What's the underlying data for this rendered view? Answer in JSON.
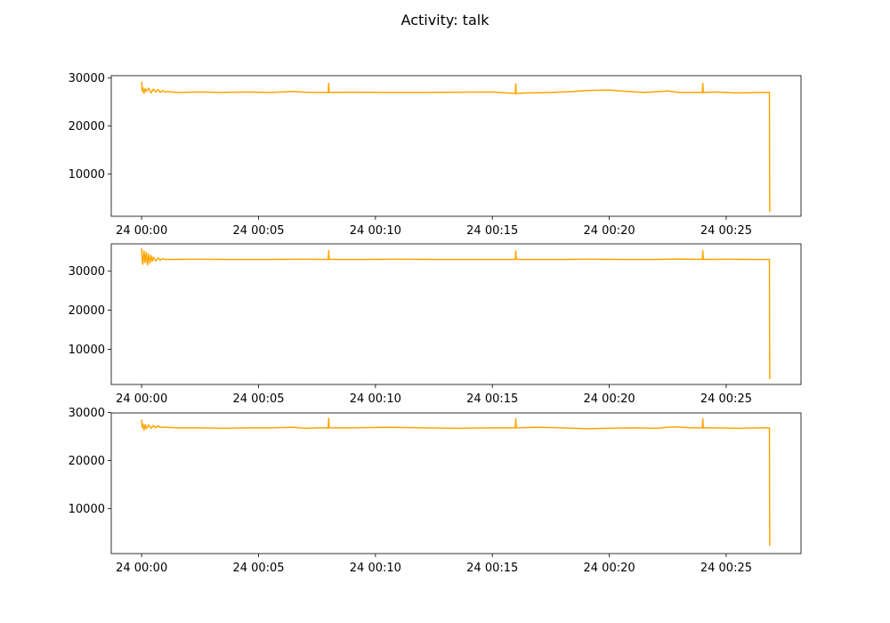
{
  "figure": {
    "title": "Activity: talk"
  },
  "colors": {
    "series": "#ffa500"
  },
  "chart_data": [
    {
      "type": "line",
      "title": "",
      "xlabel": "",
      "ylabel": "",
      "x_unit": "minutes",
      "xlim": [
        -1.3,
        28.2
      ],
      "ylim": [
        1200,
        30500
      ],
      "x_ticks": [
        0,
        5,
        10,
        15,
        20,
        25
      ],
      "x_tick_labels": [
        "24 00:00",
        "24 00:05",
        "24 00:10",
        "24 00:15",
        "24 00:20",
        "24 00:25"
      ],
      "y_ticks": [
        10000,
        20000,
        30000
      ],
      "y_tick_labels": [
        "10000",
        "20000",
        "30000"
      ],
      "grid": false,
      "series": [
        {
          "color": "#ffa500",
          "x": [
            0,
            0.02,
            0.05,
            0.1,
            0.15,
            0.2,
            0.3,
            0.4,
            0.5,
            0.6,
            0.7,
            0.8,
            0.9,
            1.0,
            1.1,
            1.5,
            2.5,
            3.5,
            4.5,
            5.5,
            6.5,
            7.0,
            7.5,
            7.98,
            8.0,
            8.02,
            9.0,
            10.5,
            12.0,
            13.5,
            15.0,
            15.98,
            16.0,
            16.02,
            16.5,
            17.5,
            18.5,
            19.0,
            20.0,
            20.5,
            21.5,
            22.5,
            23.0,
            23.98,
            24.0,
            24.02,
            24.5,
            25.5,
            26.5,
            26.85,
            26.86
          ],
          "y": [
            29200,
            27300,
            28000,
            26800,
            27800,
            27200,
            27900,
            26900,
            27700,
            27100,
            27600,
            27000,
            27400,
            27100,
            27200,
            27000,
            27100,
            27000,
            27100,
            27000,
            27200,
            27050,
            27000,
            27000,
            28900,
            27000,
            27050,
            27000,
            27000,
            27050,
            27100,
            26800,
            28800,
            26800,
            26900,
            27000,
            27200,
            27400,
            27500,
            27300,
            27000,
            27300,
            27000,
            27000,
            28900,
            27000,
            27100,
            26900,
            27000,
            27000,
            2100
          ]
        }
      ]
    },
    {
      "type": "line",
      "title": "",
      "xlabel": "",
      "ylabel": "",
      "x_unit": "minutes",
      "xlim": [
        -1.3,
        28.2
      ],
      "ylim": [
        1000,
        37000
      ],
      "x_ticks": [
        0,
        5,
        10,
        15,
        20,
        25
      ],
      "x_tick_labels": [
        "24 00:00",
        "24 00:05",
        "24 00:10",
        "24 00:15",
        "24 00:20",
        "24 00:25"
      ],
      "y_ticks": [
        10000,
        20000,
        30000
      ],
      "y_tick_labels": [
        "10000",
        "20000",
        "30000"
      ],
      "grid": false,
      "series": [
        {
          "color": "#ffa500",
          "x": [
            0,
            0.02,
            0.05,
            0.1,
            0.15,
            0.2,
            0.25,
            0.3,
            0.35,
            0.4,
            0.45,
            0.5,
            0.6,
            0.7,
            0.8,
            0.9,
            1.0,
            1.2,
            2.5,
            4.0,
            5.5,
            7.0,
            7.98,
            8.0,
            8.02,
            9.5,
            11.0,
            12.5,
            14.0,
            15.5,
            15.98,
            16.0,
            16.02,
            17.5,
            19.0,
            20.5,
            22.0,
            23.0,
            23.98,
            24.0,
            24.02,
            25.0,
            26.0,
            26.85,
            26.86
          ],
          "y": [
            35900,
            33000,
            31800,
            35200,
            32200,
            34800,
            31600,
            34400,
            32100,
            34000,
            32500,
            33600,
            32600,
            33400,
            32800,
            33200,
            33000,
            33000,
            33050,
            33000,
            33000,
            33050,
            33000,
            35300,
            33000,
            33000,
            33050,
            33000,
            33000,
            33000,
            33000,
            35200,
            33000,
            33000,
            33050,
            33000,
            33000,
            33100,
            33000,
            35300,
            33000,
            33050,
            33000,
            33000,
            2400
          ]
        }
      ]
    },
    {
      "type": "line",
      "title": "",
      "xlabel": "",
      "ylabel": "",
      "x_unit": "minutes",
      "xlim": [
        -1.3,
        28.2
      ],
      "ylim": [
        600,
        29900
      ],
      "x_ticks": [
        0,
        5,
        10,
        15,
        20,
        25
      ],
      "x_tick_labels": [
        "24 00:00",
        "24 00:05",
        "24 00:10",
        "24 00:15",
        "24 00:20",
        "24 00:25"
      ],
      "y_ticks": [
        10000,
        20000,
        30000
      ],
      "y_tick_labels": [
        "10000",
        "20000",
        "30000"
      ],
      "grid": false,
      "series": [
        {
          "color": "#ffa500",
          "x": [
            0,
            0.02,
            0.05,
            0.1,
            0.15,
            0.2,
            0.3,
            0.4,
            0.5,
            0.6,
            0.7,
            0.8,
            1.0,
            1.5,
            2.5,
            3.5,
            4.5,
            5.5,
            6.5,
            7.0,
            7.5,
            7.98,
            8.0,
            8.02,
            9.0,
            10.5,
            12.0,
            13.5,
            15.0,
            15.98,
            16.0,
            16.02,
            17.0,
            18.0,
            19.0,
            20.0,
            21.0,
            22.0,
            22.8,
            23.5,
            23.98,
            24.0,
            24.02,
            24.5,
            25.5,
            26.5,
            26.85,
            26.86
          ],
          "y": [
            28500,
            26900,
            27600,
            26300,
            27500,
            26600,
            27400,
            26700,
            27300,
            26800,
            27200,
            26900,
            26900,
            26800,
            26800,
            26700,
            26800,
            26800,
            26900,
            26700,
            26800,
            26800,
            28800,
            26800,
            26800,
            26900,
            26800,
            26700,
            26800,
            26800,
            28700,
            26800,
            26900,
            26800,
            26600,
            26700,
            26800,
            26700,
            27000,
            26800,
            26800,
            28700,
            26800,
            26800,
            26700,
            26800,
            26800,
            2200
          ]
        }
      ]
    }
  ]
}
